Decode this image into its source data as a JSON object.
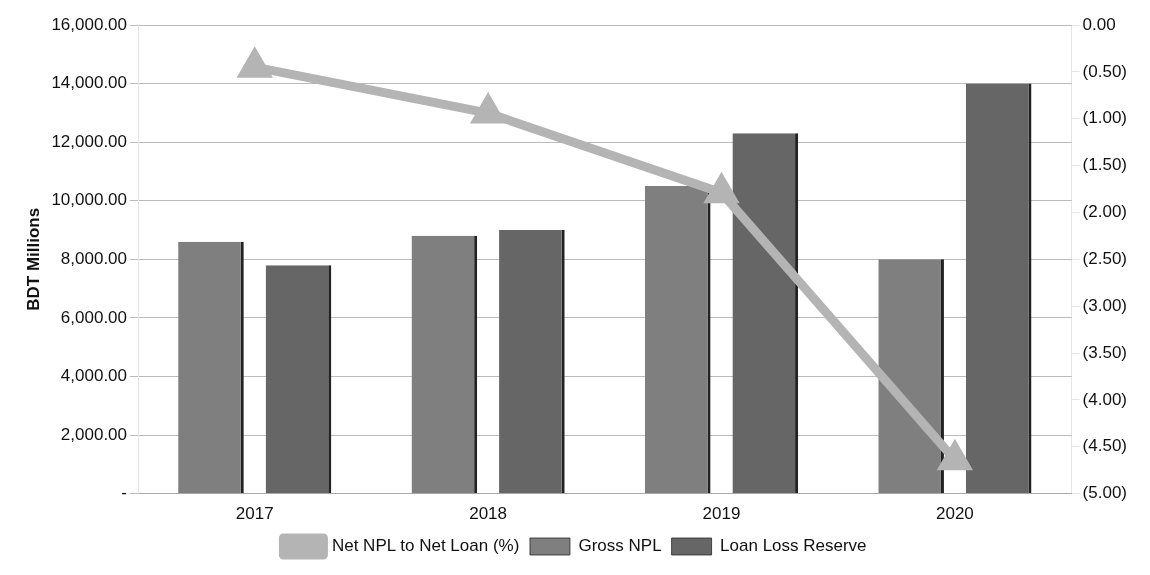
{
  "chart_data": {
    "type": "bar",
    "ylabel": "BDT Millions",
    "categories": [
      "2017",
      "2018",
      "2019",
      "2020"
    ],
    "series": [
      {
        "name": "Gross NPL",
        "color": "#7f7f7f",
        "values": [
          8600,
          8800,
          10500,
          8000
        ]
      },
      {
        "name": "Loan Loss Reserve",
        "color": "#666666",
        "values": [
          7800,
          9000,
          12300,
          14000
        ]
      },
      {
        "name": "Net NPL to Net Loan (%)",
        "color": "#b4b4b4",
        "type": "line",
        "axis": "y2",
        "marker": "triangle",
        "values": [
          -0.45,
          -0.94,
          -1.79,
          -4.64
        ]
      }
    ],
    "ylim": [
      0,
      16000
    ],
    "yticks": [
      {
        "value": 0,
        "label": "-"
      },
      {
        "value": 2000,
        "label": "2,000.00"
      },
      {
        "value": 4000,
        "label": "4,000.00"
      },
      {
        "value": 6000,
        "label": "6,000.00"
      },
      {
        "value": 8000,
        "label": "8,000.00"
      },
      {
        "value": 10000,
        "label": "10,000.00"
      },
      {
        "value": 12000,
        "label": "12,000.00"
      },
      {
        "value": 14000,
        "label": "14,000.00"
      },
      {
        "value": 16000,
        "label": "16,000.00"
      }
    ],
    "y2lim": [
      -5,
      0
    ],
    "y2ticks": [
      {
        "value": -5,
        "label": "(5.00)"
      },
      {
        "value": -4.5,
        "label": "(4.50)"
      },
      {
        "value": -4,
        "label": "(4.00)"
      },
      {
        "value": -3.5,
        "label": "(3.50)"
      },
      {
        "value": -3,
        "label": "(3.00)"
      },
      {
        "value": -2.5,
        "label": "(2.50)"
      },
      {
        "value": -2,
        "label": "(2.00)"
      },
      {
        "value": -1.5,
        "label": "(1.50)"
      },
      {
        "value": -1,
        "label": "(1.00)"
      },
      {
        "value": -0.5,
        "label": "(0.50)"
      },
      {
        "value": 0,
        "label": "0.00"
      }
    ],
    "grid": "y",
    "legend": "bottom"
  }
}
